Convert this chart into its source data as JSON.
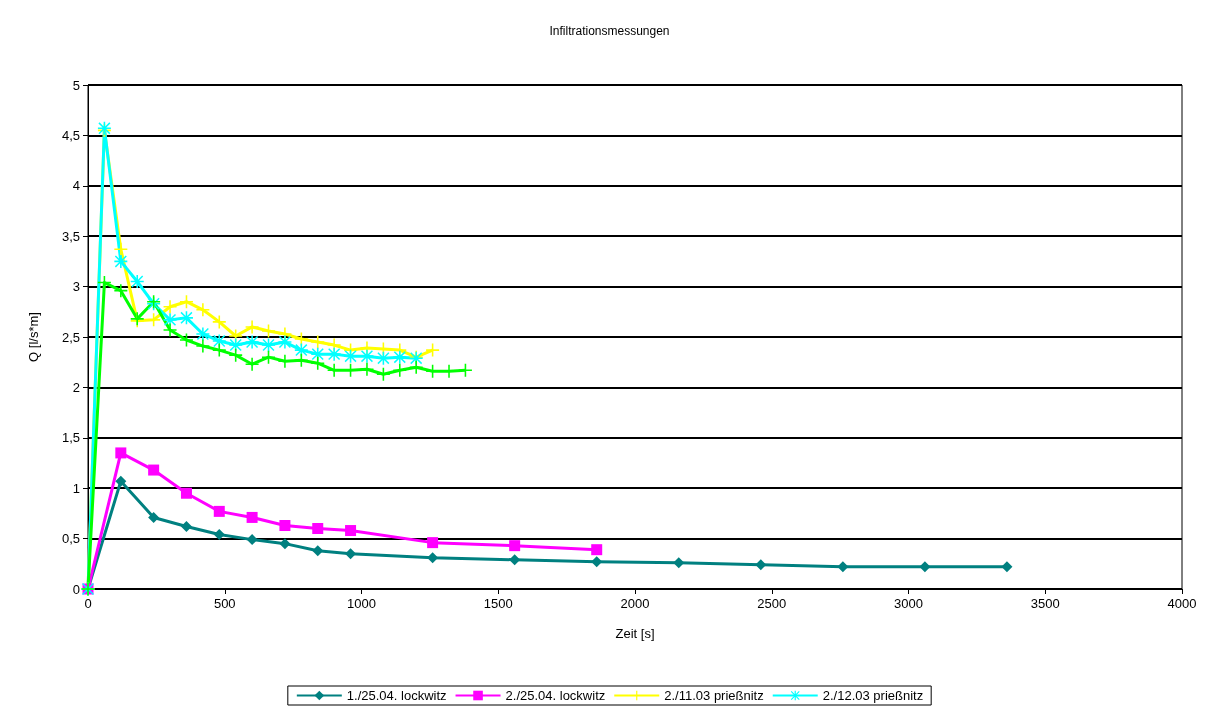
{
  "chart_data": {
    "type": "line",
    "title": "Infiltrationsmessungen",
    "xlabel": "Zeit [s]",
    "ylabel": "Q [l/s*m]",
    "xlim": [
      0,
      4000
    ],
    "xticks": [
      0,
      500,
      1000,
      1500,
      2000,
      2500,
      3000,
      3500,
      4000
    ],
    "ylim": [
      0,
      5
    ],
    "yticks": [
      0,
      {
        "value": 0.5,
        "label": "0,5"
      },
      1,
      {
        "value": 1.5,
        "label": "1,5"
      },
      2,
      {
        "value": 2.5,
        "label": "2,5"
      },
      3,
      {
        "value": 3.5,
        "label": "3,5"
      },
      4,
      {
        "value": 4.5,
        "label": "4,5"
      },
      5
    ],
    "grid": "y",
    "legend": "bottom",
    "series": [
      {
        "name": "1./25.04. lockwitz",
        "color": "#008080",
        "marker": "diamond",
        "x": [
          0,
          120,
          240,
          360,
          480,
          600,
          720,
          840,
          960,
          1260,
          1560,
          1860,
          2160,
          2460,
          2760,
          3060,
          3360
        ],
        "values": [
          0,
          1.07,
          0.71,
          0.62,
          0.54,
          0.49,
          0.45,
          0.38,
          0.35,
          0.31,
          0.29,
          0.27,
          0.26,
          0.24,
          0.22,
          0.22,
          0.22
        ]
      },
      {
        "name": "2./25.04. lockwitz",
        "color": "#ff00ff",
        "marker": "square",
        "x": [
          0,
          120,
          240,
          360,
          480,
          600,
          720,
          840,
          960,
          1260,
          1560,
          1860
        ],
        "values": [
          0,
          1.35,
          1.18,
          0.95,
          0.77,
          0.71,
          0.63,
          0.6,
          0.58,
          0.46,
          0.43,
          0.39
        ]
      },
      {
        "name": "2./11.03 prießnitz",
        "color": "#ffff00",
        "marker": "cross",
        "x": [
          0,
          60,
          120,
          180,
          240,
          300,
          360,
          420,
          480,
          540,
          600,
          660,
          720,
          780,
          840,
          900,
          960,
          1020,
          1080,
          1140,
          1200,
          1260
        ],
        "values": [
          0,
          4.55,
          3.37,
          2.66,
          2.67,
          2.8,
          2.85,
          2.77,
          2.65,
          2.51,
          2.6,
          2.56,
          2.53,
          2.48,
          2.45,
          2.42,
          2.37,
          2.39,
          2.38,
          2.37,
          2.3,
          2.37
        ]
      },
      {
        "name": "2./12.03 prießnitz",
        "color": "#00ffff",
        "marker": "star",
        "x": [
          0,
          60,
          120,
          180,
          240,
          300,
          360,
          420,
          480,
          540,
          600,
          660,
          720,
          780,
          840,
          900,
          960,
          1020,
          1080,
          1140,
          1200
        ],
        "values": [
          0,
          4.57,
          3.25,
          3.05,
          2.83,
          2.67,
          2.69,
          2.53,
          2.46,
          2.42,
          2.45,
          2.42,
          2.45,
          2.37,
          2.33,
          2.33,
          2.31,
          2.31,
          2.29,
          2.3,
          2.29
        ]
      },
      {
        "color": "#00ff00",
        "marker": "cross",
        "x": [
          0,
          60,
          120,
          180,
          240,
          300,
          360,
          420,
          480,
          540,
          600,
          660,
          720,
          780,
          840,
          900,
          960,
          1020,
          1080,
          1140,
          1200,
          1260,
          1320,
          1380
        ],
        "values": [
          0,
          3.04,
          2.96,
          2.68,
          2.85,
          2.57,
          2.47,
          2.41,
          2.37,
          2.32,
          2.23,
          2.3,
          2.26,
          2.27,
          2.24,
          2.17,
          2.17,
          2.18,
          2.13,
          2.17,
          2.2,
          2.16,
          2.16,
          2.17
        ]
      }
    ]
  }
}
